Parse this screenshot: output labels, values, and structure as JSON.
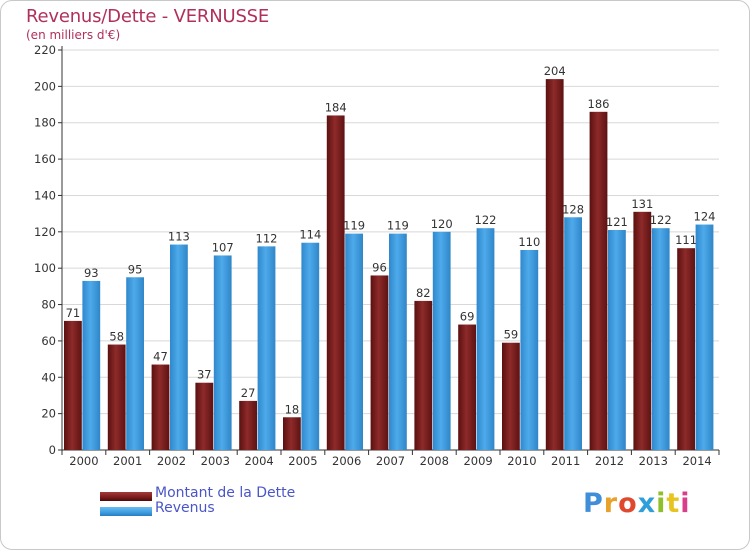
{
  "header": {
    "title": "Revenus/Dette - VERNUSSE",
    "subtitle": "(en milliers d'€)"
  },
  "legend": {
    "items": [
      {
        "label": "Montant de la Dette",
        "color": "#7a1b1b"
      },
      {
        "label": "Revenus",
        "color": "#3d9de0"
      }
    ]
  },
  "logo": {
    "text": "Proxiti",
    "colors": [
      "#3e8ed8",
      "#e8a22a",
      "#e0492e",
      "#2e9fd8",
      "#8fbf2a",
      "#e8c420",
      "#d83e8a"
    ]
  },
  "colors": {
    "dette": "#7a1b1b",
    "revenus": "#3d9de0",
    "axis": "#333333",
    "grid": "#d8d8d8",
    "label": "#333333"
  },
  "chart_data": {
    "type": "bar",
    "title": "Revenus/Dette - VERNUSSE",
    "subtitle": "(en milliers d'€)",
    "categories": [
      "2000",
      "2001",
      "2002",
      "2003",
      "2004",
      "2005",
      "2006",
      "2007",
      "2008",
      "2009",
      "2010",
      "2011",
      "2012",
      "2013",
      "2014"
    ],
    "series": [
      {
        "name": "Montant de la Dette",
        "values": [
          71,
          58,
          47,
          37,
          27,
          18,
          184,
          96,
          82,
          69,
          59,
          204,
          186,
          131,
          111
        ]
      },
      {
        "name": "Revenus",
        "values": [
          93,
          95,
          113,
          107,
          112,
          114,
          119,
          119,
          120,
          122,
          110,
          128,
          121,
          122,
          124
        ]
      }
    ],
    "ylim": [
      0,
      220
    ],
    "yticks": [
      0,
      20,
      40,
      60,
      80,
      100,
      120,
      140,
      160,
      180,
      200,
      220
    ],
    "grid": true,
    "legend_position": "bottom-left",
    "data_labels": true
  }
}
